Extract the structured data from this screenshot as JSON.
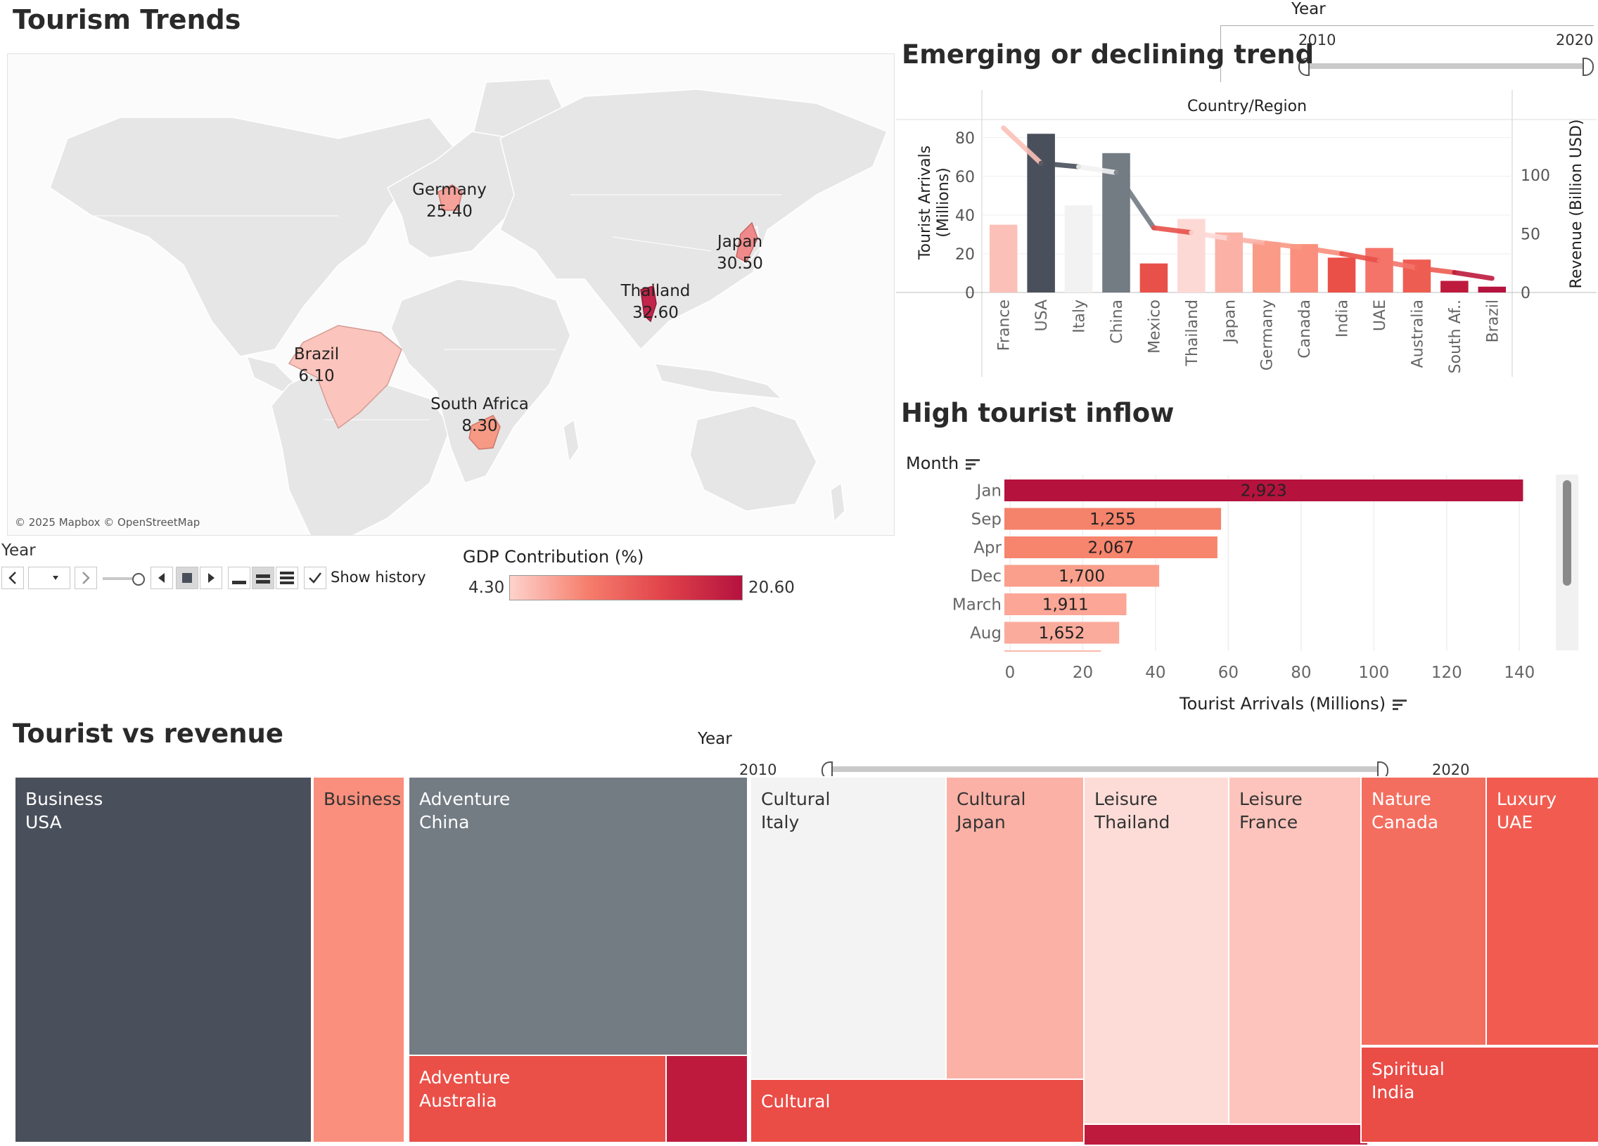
{
  "dashboard": {
    "title": "Tourism Trends"
  },
  "map": {
    "attribution": "© 2025 Mapbox © OpenStreetMap",
    "points": [
      {
        "name": "Germany",
        "value": "25.40",
        "color": "#f4a29a"
      },
      {
        "name": "Japan",
        "value": "30.50",
        "color": "#f08a8a"
      },
      {
        "name": "Thailand",
        "value": "32.60",
        "color": "#c2264a"
      },
      {
        "name": "Brazil",
        "value": "6.10",
        "color": "#fbc4bc"
      },
      {
        "name": "South Africa",
        "value": "8.30",
        "color": "#f79a85"
      }
    ]
  },
  "year_control": {
    "label": "Year",
    "show_history_label": "Show history",
    "show_history_checked": true
  },
  "legend": {
    "title": "GDP Contribution (%)",
    "min": "4.30",
    "max": "20.60",
    "color_low": "#fdd3cc",
    "color_high": "#b5123e"
  },
  "year_filter_top": {
    "label": "Year",
    "min": "2010",
    "max": "2020"
  },
  "year_filter_bottom": {
    "label": "Year",
    "min": "2010",
    "max": "2020"
  },
  "sort_icon": "sort-icon",
  "chart_data": [
    {
      "type": "bar",
      "title": "Emerging or declining trend",
      "header": "Country/Region",
      "categories": [
        "France",
        "USA",
        "Italy",
        "China",
        "Mexico",
        "Thailand",
        "Japan",
        "Germany",
        "Canada",
        "India",
        "UAE",
        "Australia",
        "South Af..",
        "Brazil"
      ],
      "bar_colors": [
        "#fbc0b8",
        "#4a505b",
        "#f2f2f2",
        "#737b83",
        "#e8504a",
        "#fdd9d5",
        "#fbb1a6",
        "#f99b87",
        "#f98f7c",
        "#ea5048",
        "#f4746a",
        "#ee5d52",
        "#be1a3e",
        "#b5123e"
      ],
      "series": [
        {
          "name": "Tourist Arrivals (Millions)",
          "axis": "left",
          "values": [
            35,
            82,
            45,
            72,
            15,
            38,
            31,
            26,
            25,
            18,
            23,
            17,
            6,
            3
          ]
        },
        {
          "name": "Revenue (Billion USD)",
          "axis": "right",
          "values": [
            140,
            110,
            107,
            102,
            55,
            51,
            46,
            42,
            38,
            33,
            27,
            21,
            17,
            12
          ]
        }
      ],
      "ylabel": "Tourist Arrivals\n(Millions)",
      "y2label": "Revenue (Billion USD)",
      "ylim": [
        0,
        85
      ],
      "y_ticks": [
        0,
        20,
        40,
        60,
        80
      ],
      "y2lim": [
        0,
        140
      ],
      "y2_ticks": [
        0,
        50,
        100
      ]
    },
    {
      "type": "bar",
      "orientation": "horizontal",
      "title": "High tourist inflow",
      "row_header": "Month",
      "categories": [
        "Jan",
        "Sep",
        "Apr",
        "Dec",
        "March",
        "Aug"
      ],
      "values": [
        141,
        58,
        57,
        41,
        32,
        30
      ],
      "labels": [
        "2,923",
        "1,255",
        "2,067",
        "1,700",
        "1,911",
        "1,652"
      ],
      "bar_colors": [
        "#b5123e",
        "#f5826a",
        "#f7846c",
        "#f99f8b",
        "#fba696",
        "#fbab9c"
      ],
      "xlabel": "Tourist Arrivals (Millions)",
      "xlim": [
        0,
        150
      ],
      "x_ticks": [
        0,
        20,
        40,
        60,
        80,
        100,
        120,
        140
      ]
    },
    {
      "type": "treemap",
      "title": "Tourist vs revenue",
      "cells": [
        {
          "label": "Business\nUSA",
          "color": "#4a505b",
          "text": "light"
        },
        {
          "label": "Business",
          "color": "#f98f7c",
          "text": "dark"
        },
        {
          "label": "Adventure\nChina",
          "color": "#737b83",
          "text": "light"
        },
        {
          "label": "Adventure\nAustralia",
          "color": "#ea5048",
          "text": "light"
        },
        {
          "label": "",
          "color": "#be1a3e",
          "text": "light"
        },
        {
          "label": "Cultural\nItaly",
          "color": "#f3f3f3",
          "text": "dark"
        },
        {
          "label": "Cultural\nJapan",
          "color": "#fbb1a6",
          "text": "dark"
        },
        {
          "label": "Cultural",
          "color": "#ea4c46",
          "text": "light"
        },
        {
          "label": "Leisure\nThailand",
          "color": "#fddcd8",
          "text": "dark"
        },
        {
          "label": "Leisure\nFrance",
          "color": "#fcc4bc",
          "text": "dark"
        },
        {
          "label": "",
          "color": "#be1a3e",
          "text": "light"
        },
        {
          "label": "Nature\nCanada",
          "color": "#f46e5f",
          "text": "light"
        },
        {
          "label": "Luxury\nUAE",
          "color": "#f25c50",
          "text": "light"
        },
        {
          "label": "Spiritual\nIndia",
          "color": "#ea4c46",
          "text": "light"
        }
      ]
    }
  ]
}
